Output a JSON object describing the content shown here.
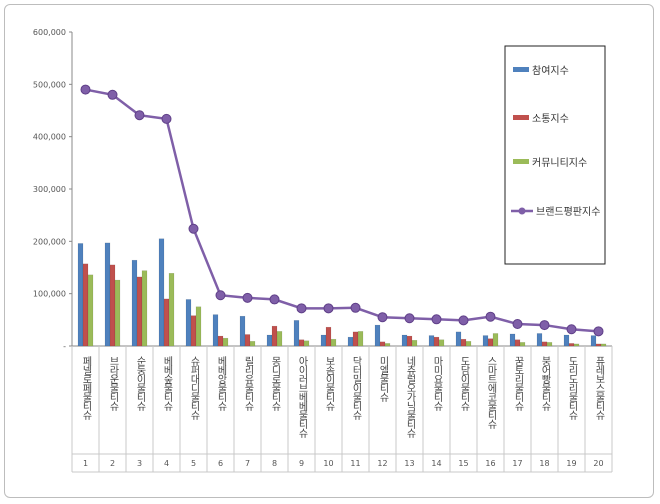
{
  "chart_data": {
    "type": "bar",
    "categories": [
      "페넬로페 물티슈",
      "브라운 물티슈",
      "순둥이 물티슈",
      "베베숲 물티슈",
      "슈퍼대디 물티슈",
      "베베앙 물티슈",
      "릴리유 물티슈",
      "몽디로 물티슈",
      "아이러브베베 물티슈",
      "보솜이 물티슈",
      "닥터 밀이 물티슈",
      "미엘 물티슈",
      "네츄럴오가닉 물티슈",
      "마미요 물티슈",
      "도담이 물티슈",
      "스마트에코 물티슈",
      "꿈토리 물티슈",
      "붕어빵 물티슈",
      "도리도리 물티슈",
      "퓨레보스 물티슈"
    ],
    "index_labels": [
      "1",
      "2",
      "3",
      "4",
      "5",
      "6",
      "7",
      "8",
      "9",
      "10",
      "11",
      "12",
      "13",
      "14",
      "15",
      "16",
      "17",
      "18",
      "19",
      "20"
    ],
    "series": [
      {
        "name": "참여지수",
        "type": "bar",
        "color": "#4f81bd",
        "values": [
          196000,
          197000,
          164000,
          205000,
          89000,
          60000,
          57000,
          21000,
          49000,
          21000,
          17000,
          40000,
          21000,
          20000,
          27000,
          20000,
          23000,
          24000,
          21000,
          20000
        ]
      },
      {
        "name": "소통지수",
        "type": "bar",
        "color": "#c0504d",
        "values": [
          157000,
          155000,
          132000,
          90000,
          58000,
          19000,
          22000,
          38000,
          12000,
          36000,
          27000,
          8000,
          19000,
          17000,
          13000,
          14000,
          12000,
          8000,
          5000,
          4000
        ]
      },
      {
        "name": "커뮤니티지수",
        "type": "bar",
        "color": "#9bbb59",
        "values": [
          136000,
          126000,
          144000,
          139000,
          75000,
          15000,
          9000,
          28000,
          10000,
          13000,
          28000,
          5000,
          11000,
          12000,
          9000,
          24000,
          7000,
          7000,
          4000,
          4000
        ]
      },
      {
        "name": "브랜드평판지수",
        "type": "line",
        "color": "#7f5fa8",
        "values": [
          490000,
          480000,
          441000,
          434000,
          224000,
          97000,
          92000,
          89000,
          72000,
          72000,
          73000,
          55000,
          53000,
          51000,
          49000,
          56000,
          42000,
          40000,
          32000,
          28000
        ]
      }
    ],
    "ylim": [
      0,
      600000
    ],
    "yticks": [
      "-",
      "100,000",
      "200,000",
      "300,000",
      "400,000",
      "500,000",
      "600,000"
    ],
    "legend_position": "top-right",
    "grid": false
  }
}
